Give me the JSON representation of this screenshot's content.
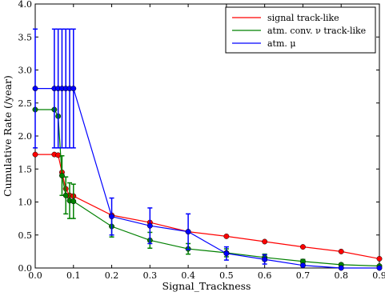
{
  "chart_data": {
    "type": "line",
    "xlabel": "Signal_Trackness",
    "ylabel": "Cumulative Rate (/year)",
    "xlim": [
      0.0,
      0.9
    ],
    "ylim": [
      0.0,
      4.0
    ],
    "x_ticks": [
      "0.0",
      "0.1",
      "0.2",
      "0.3",
      "0.4",
      "0.5",
      "0.6",
      "0.7",
      "0.8",
      "0.9"
    ],
    "y_ticks": [
      "0.0",
      "0.5",
      "1.0",
      "1.5",
      "2.0",
      "2.5",
      "3.0",
      "3.5",
      "4.0"
    ],
    "grid": false,
    "legend_position": "top-right",
    "series": [
      {
        "name": "signal track-like",
        "color": "#ff0000",
        "x": [
          0.0,
          0.05,
          0.06,
          0.07,
          0.08,
          0.09,
          0.1,
          0.2,
          0.3,
          0.4,
          0.5,
          0.6,
          0.7,
          0.8,
          0.9
        ],
        "y": [
          1.72,
          1.72,
          1.71,
          1.45,
          1.2,
          1.1,
          1.09,
          0.8,
          0.69,
          0.55,
          0.48,
          0.4,
          0.32,
          0.25,
          0.14
        ],
        "err": [
          0,
          0,
          0,
          0,
          0,
          0,
          0,
          0,
          0,
          0,
          0,
          0,
          0,
          0,
          0
        ]
      },
      {
        "name": "atm. conv. ν track-like",
        "color": "#008000",
        "x": [
          0.0,
          0.05,
          0.06,
          0.07,
          0.08,
          0.09,
          0.1,
          0.2,
          0.3,
          0.4,
          0.5,
          0.6,
          0.7,
          0.8,
          0.9
        ],
        "y": [
          2.4,
          2.4,
          2.3,
          1.4,
          1.1,
          1.02,
          1.01,
          0.63,
          0.42,
          0.29,
          0.23,
          0.16,
          0.1,
          0.05,
          0.03
        ],
        "err": [
          0.0,
          0.0,
          0.0,
          0.3,
          0.28,
          0.27,
          0.26,
          0.16,
          0.12,
          0.08,
          0.06,
          0.05,
          0.03,
          0.02,
          0.01
        ]
      },
      {
        "name": "atm. μ",
        "color": "#0000ff",
        "x": [
          0.0,
          0.05,
          0.06,
          0.07,
          0.08,
          0.09,
          0.1,
          0.2,
          0.3,
          0.4,
          0.5,
          0.6,
          0.7,
          0.8,
          0.9
        ],
        "y": [
          2.72,
          2.72,
          2.72,
          2.72,
          2.72,
          2.72,
          2.72,
          0.78,
          0.64,
          0.55,
          0.22,
          0.13,
          0.04,
          0.0,
          0.0
        ],
        "err": [
          0.9,
          0.9,
          0.9,
          0.9,
          0.9,
          0.9,
          0.9,
          0.28,
          0.27,
          0.27,
          0.1,
          0.07,
          0.0,
          0.0,
          0.0
        ]
      }
    ]
  }
}
